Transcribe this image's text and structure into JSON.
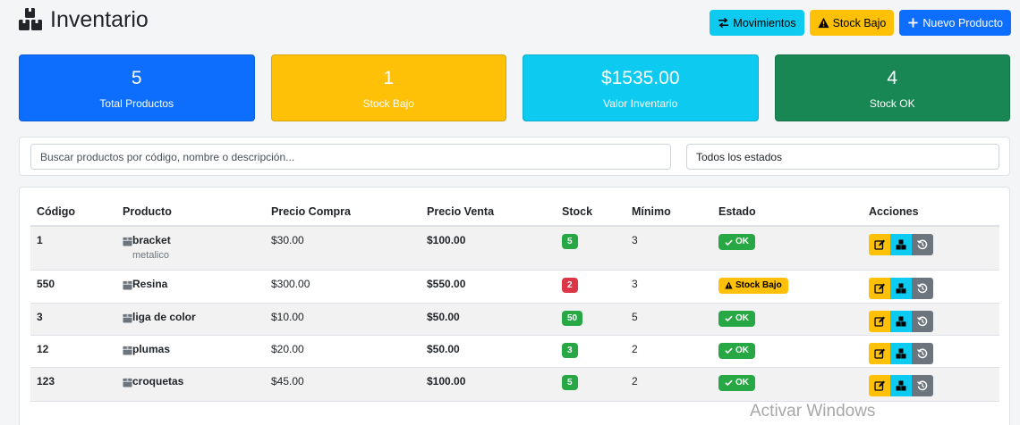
{
  "header": {
    "title": "Inventario",
    "buttons": {
      "movimientos": "Movimientos",
      "stock_bajo": "Stock Bajo",
      "nuevo": "Nuevo Producto"
    }
  },
  "stats": [
    {
      "value": "5",
      "label": "Total Productos",
      "color": "#0d6efd"
    },
    {
      "value": "1",
      "label": "Stock Bajo",
      "color": "#ffc107"
    },
    {
      "value": "$1535.00",
      "label": "Valor Inventario",
      "color": "#0dcaf0"
    },
    {
      "value": "4",
      "label": "Stock OK",
      "color": "#198754"
    }
  ],
  "filters": {
    "search_placeholder": "Buscar productos por código, nombre o descripción...",
    "status_value": "Todos los estados"
  },
  "table": {
    "headers": [
      "Código",
      "Producto",
      "Precio Compra",
      "Precio Venta",
      "Stock",
      "Mínimo",
      "Estado",
      "Acciones"
    ],
    "rows": [
      {
        "codigo": "1",
        "producto": "bracket",
        "descripcion": "metalico",
        "compra": "$30.00",
        "venta": "$100.00",
        "stock": "5",
        "minimo": "3",
        "estado": "OK",
        "low": false
      },
      {
        "codigo": "550",
        "producto": "Resina",
        "descripcion": "",
        "compra": "$300.00",
        "venta": "$550.00",
        "stock": "2",
        "minimo": "3",
        "estado": "Stock Bajo",
        "low": true
      },
      {
        "codigo": "3",
        "producto": "liga de color",
        "descripcion": "",
        "compra": "$10.00",
        "venta": "$50.00",
        "stock": "50",
        "minimo": "5",
        "estado": "OK",
        "low": false
      },
      {
        "codigo": "12",
        "producto": "plumas",
        "descripcion": "",
        "compra": "$20.00",
        "venta": "$50.00",
        "stock": "3",
        "minimo": "2",
        "estado": "OK",
        "low": false
      },
      {
        "codigo": "123",
        "producto": "croquetas",
        "descripcion": "",
        "compra": "$45.00",
        "venta": "$100.00",
        "stock": "5",
        "minimo": "2",
        "estado": "OK",
        "low": false
      }
    ]
  },
  "watermark": "Activar Windows"
}
